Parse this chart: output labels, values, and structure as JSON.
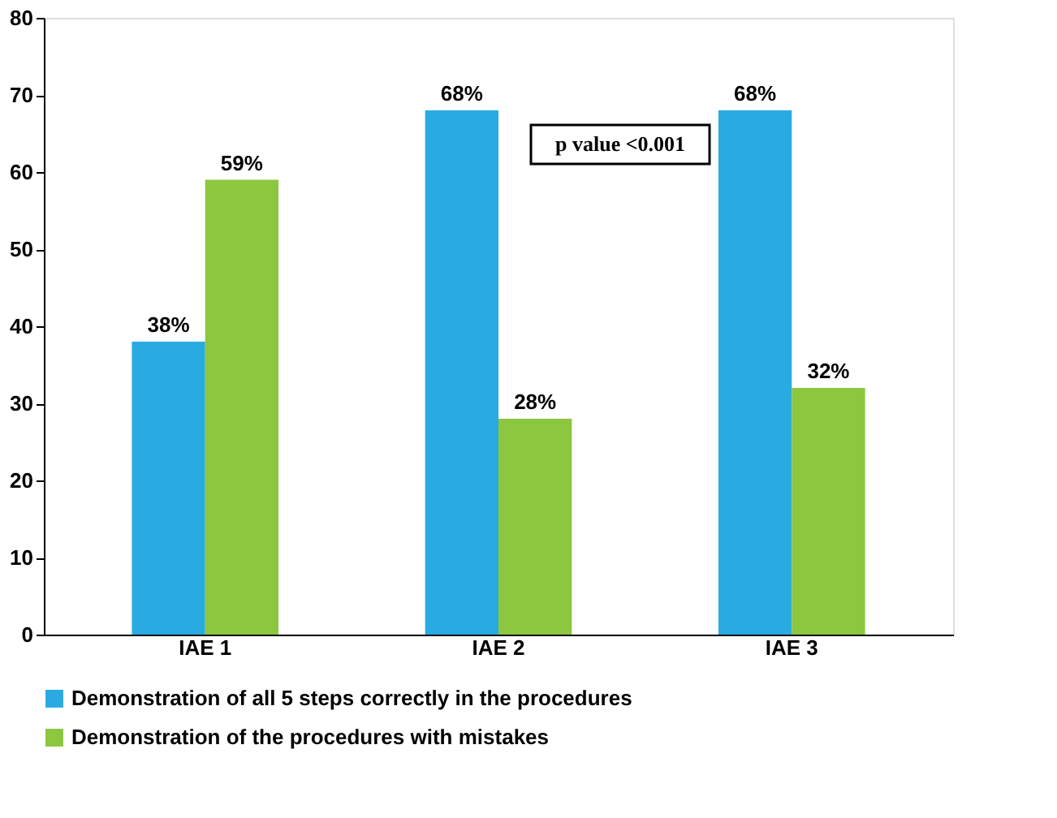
{
  "chart_data": {
    "type": "bar",
    "categories": [
      "IAE 1",
      "IAE 2",
      "IAE 3"
    ],
    "series": [
      {
        "name": "Demonstration of all 5 steps correctly in the  procedures",
        "color": "#29abe2",
        "values": [
          38,
          68,
          68
        ],
        "value_labels": [
          "38%",
          "68%",
          "68%"
        ]
      },
      {
        "name": "Demonstration of the procedures with mistakes",
        "color": "#8dc63f",
        "values": [
          59,
          28,
          32
        ],
        "value_labels": [
          "59%",
          "28%",
          "32%"
        ]
      }
    ],
    "ylim": [
      0,
      80
    ],
    "yticks": [
      0,
      10,
      20,
      30,
      40,
      50,
      60,
      70,
      80
    ],
    "grid": false,
    "legend": "bottom",
    "annotations": [
      "p value <0.001"
    ]
  }
}
